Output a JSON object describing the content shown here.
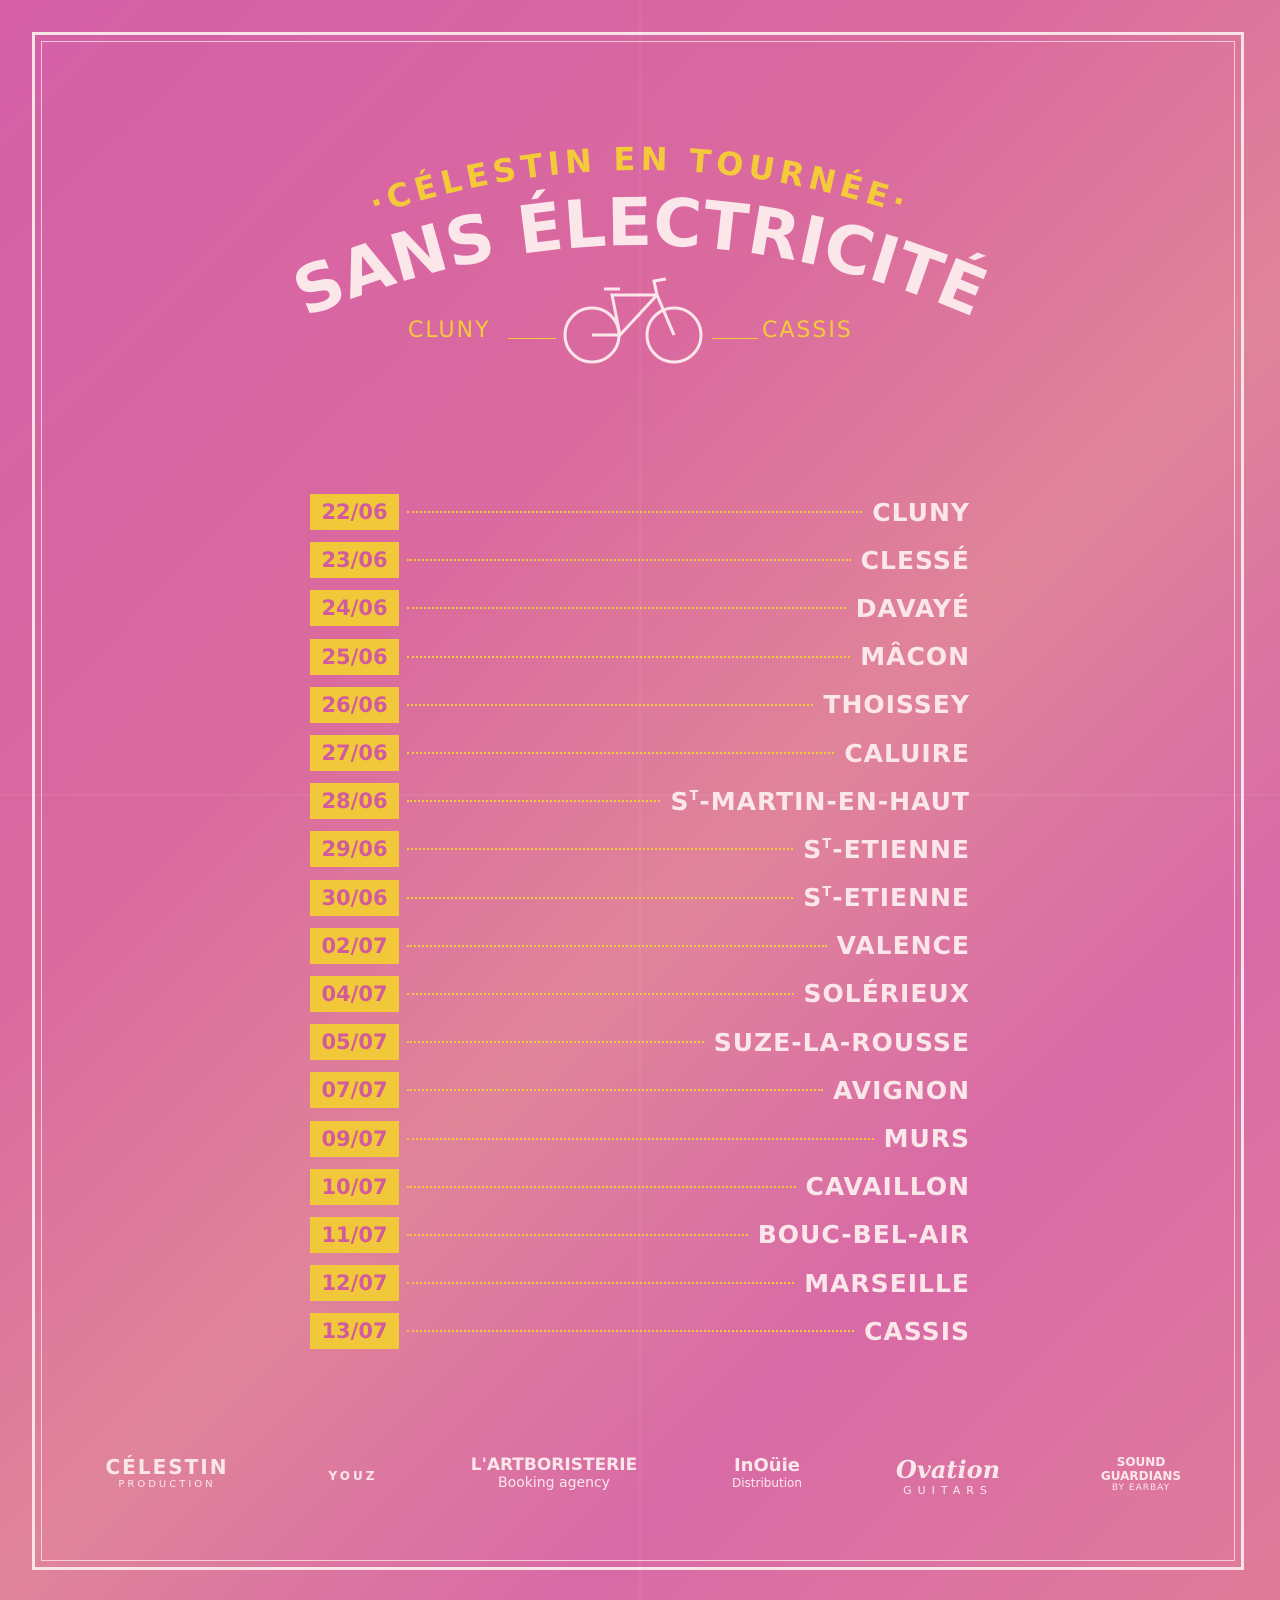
{
  "header": {
    "subtitle": "·CÉLESTIN EN TOURNÉE·",
    "title": "SANS ÉLECTRICITÉ",
    "route_from": "CLUNY",
    "route_to": "CASSIS"
  },
  "icons": {
    "bike": "bicycle-icon"
  },
  "colors": {
    "accent": "#f4c93a",
    "text": "#fbe6ea",
    "date_text": "#d25b9d"
  },
  "schedule": [
    {
      "date": "22/06",
      "city": "CLUNY"
    },
    {
      "date": "23/06",
      "city": "CLESSÉ"
    },
    {
      "date": "24/06",
      "city": "DAVAYÉ"
    },
    {
      "date": "25/06",
      "city": "MÂCON"
    },
    {
      "date": "26/06",
      "city": "THOISSEY"
    },
    {
      "date": "27/06",
      "city": "CALUIRE"
    },
    {
      "date": "28/06",
      "city_prefix": "S",
      "city_sup": "T",
      "city": "-MARTIN-EN-HAUT"
    },
    {
      "date": "29/06",
      "city_prefix": "S",
      "city_sup": "T",
      "city": "-ETIENNE"
    },
    {
      "date": "30/06",
      "city_prefix": "S",
      "city_sup": "T",
      "city": "-ETIENNE"
    },
    {
      "date": "02/07",
      "city": "VALENCE"
    },
    {
      "date": "04/07",
      "city": "SOLÉRIEUX"
    },
    {
      "date": "05/07",
      "city": "SUZE-LA-ROUSSE"
    },
    {
      "date": "07/07",
      "city": "AVIGNON"
    },
    {
      "date": "09/07",
      "city": "MURS"
    },
    {
      "date": "10/07",
      "city": "CAVAILLON"
    },
    {
      "date": "11/07",
      "city": "BOUC-BEL-AIR"
    },
    {
      "date": "12/07",
      "city": "MARSEILLE"
    },
    {
      "date": "13/07",
      "city": "CASSIS"
    }
  ],
  "sponsors": [
    {
      "name": "CÉLESTIN",
      "sub": "PRODUCTION"
    },
    {
      "name": "YOUZ",
      "sub": ""
    },
    {
      "name": "L'ARTBORISTERIE",
      "sub": "Booking agency"
    },
    {
      "name": "InOüie",
      "sub": "Distribution"
    },
    {
      "name": "Ovation",
      "sub": "GUITARS"
    },
    {
      "name": "SOUND GUARDIANS",
      "sub": "BY EARBAY"
    }
  ]
}
